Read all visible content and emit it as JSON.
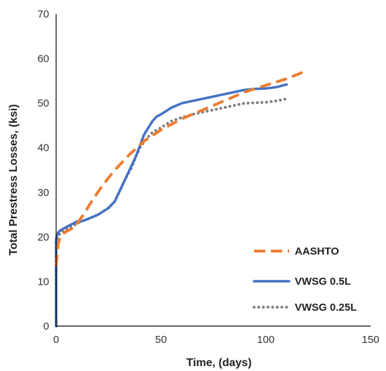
{
  "chart_data": {
    "type": "line",
    "xlabel": "Time, (days)",
    "ylabel": "Total Prestress Losses, (ksi)",
    "xlim": [
      0,
      150
    ],
    "ylim": [
      0,
      70
    ],
    "x_ticks": [
      "0",
      "50",
      "100",
      "150"
    ],
    "y_ticks": [
      "0",
      "10",
      "20",
      "30",
      "40",
      "50",
      "60",
      "70"
    ],
    "grid": false,
    "legend_position": "lower-right",
    "series": [
      {
        "name": "AASHTO",
        "color": "#ED7D31",
        "style": "dashed",
        "x": [
          0,
          0.5,
          1,
          2,
          4,
          6,
          8,
          10,
          13,
          17,
          22,
          28,
          35,
          42,
          50,
          60,
          70,
          80,
          90,
          100,
          110,
          118
        ],
        "y": [
          13.5,
          16,
          18.5,
          20,
          21,
          21.5,
          22,
          23,
          25,
          28,
          31.5,
          35,
          38.5,
          41.5,
          44,
          46.5,
          48.5,
          50.5,
          52.5,
          54,
          55.5,
          57
        ]
      },
      {
        "name": "VWSG 0.5L",
        "color": "#4472C4",
        "style": "solid",
        "x": [
          0,
          0,
          0.5,
          1,
          2,
          4,
          6,
          8,
          10,
          12,
          15,
          20,
          25,
          28,
          30,
          33,
          36,
          38,
          40,
          42,
          44,
          46,
          48,
          50,
          55,
          60,
          65,
          70,
          75,
          80,
          85,
          90,
          95,
          100,
          105,
          110
        ],
        "y": [
          0,
          19.5,
          20.5,
          21,
          21.5,
          22,
          22.5,
          23,
          23.5,
          23.5,
          24,
          25,
          26.5,
          28,
          30,
          33,
          36,
          38,
          40.5,
          43,
          44.5,
          46,
          47,
          47.5,
          49,
          50,
          50.5,
          51,
          51.5,
          52,
          52.5,
          53,
          53.2,
          53.3,
          53.6,
          54.2
        ]
      },
      {
        "name": "VWSG 0.25L",
        "color": "#7F7F7F",
        "style": "dotted",
        "x": [
          0,
          0,
          0.5,
          1,
          2,
          4,
          6,
          8,
          10,
          12,
          15,
          20,
          25,
          28,
          30,
          33,
          36,
          38,
          40,
          43,
          46,
          50,
          55,
          60,
          65,
          70,
          75,
          80,
          85,
          90,
          95,
          100,
          105,
          110
        ],
        "y": [
          0,
          19,
          19.5,
          20,
          21,
          21.5,
          22,
          22.5,
          23,
          23.5,
          24,
          25,
          26.5,
          28,
          30,
          33,
          35.5,
          38,
          40,
          42,
          43.5,
          44.5,
          46,
          46.8,
          47.5,
          48,
          48.5,
          49,
          49.5,
          50,
          50.1,
          50.2,
          50.5,
          51
        ]
      }
    ]
  }
}
